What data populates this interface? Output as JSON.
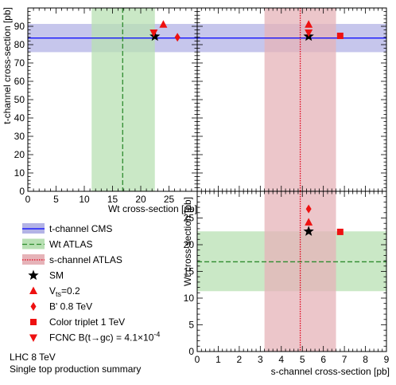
{
  "colors": {
    "cms_line": "#0000ff",
    "cms_band": "#b3b3e6",
    "wt_line": "#2e8b2e",
    "wt_band": "#b8e0b3",
    "s_line": "#e0001a",
    "s_band": "#e6b3b8",
    "marker": "#ee1111",
    "sm": "#000000"
  },
  "chart_data": [
    {
      "id": "top-left",
      "type": "scatter",
      "xlabel": "Wt cross-section [pb]",
      "ylabel": "t-channel cross-section [pb]",
      "xlim": [
        0,
        30
      ],
      "ylim": [
        0,
        100
      ],
      "xticks": [
        0,
        5,
        10,
        15,
        20,
        25
      ],
      "yticks": [
        0,
        10,
        20,
        30,
        40,
        50,
        60,
        70,
        80,
        90
      ],
      "bands": [
        {
          "name": "t-channel CMS",
          "axis": "y",
          "center": 83.6,
          "low": 75.9,
          "high": 91.3
        },
        {
          "name": "Wt ATLAS",
          "axis": "x",
          "center": 16.8,
          "low": 11.3,
          "high": 22.5
        }
      ],
      "points": [
        {
          "name": "SM",
          "x": 22.5,
          "y": 84.5
        },
        {
          "name": "Vts=0.2",
          "x": 24.0,
          "y": 91.0
        },
        {
          "name": "B' 0.8 TeV",
          "x": 26.5,
          "y": 84.0
        },
        {
          "name": "FCNC",
          "x": 22.3,
          "y": 86.5
        }
      ]
    },
    {
      "id": "top-right",
      "type": "scatter",
      "xlabel": "",
      "ylabel": "",
      "xlim": [
        0,
        9
      ],
      "ylim": [
        0,
        100
      ],
      "bands": [
        {
          "name": "t-channel CMS",
          "axis": "y",
          "center": 83.6,
          "low": 75.9,
          "high": 91.3
        },
        {
          "name": "s-channel ATLAS",
          "axis": "x",
          "center": 4.9,
          "low": 3.2,
          "high": 6.6
        }
      ],
      "points": [
        {
          "name": "SM",
          "x": 5.3,
          "y": 84.5
        },
        {
          "name": "Vts=0.2",
          "x": 5.3,
          "y": 91.0
        },
        {
          "name": "Color triplet 1 TeV",
          "x": 6.8,
          "y": 84.8
        },
        {
          "name": "FCNC",
          "x": 5.3,
          "y": 86.5
        }
      ]
    },
    {
      "id": "bottom-right",
      "type": "scatter",
      "xlabel": "s-channel cross-section [pb]",
      "ylabel": "Wt cross-section [pb]",
      "xlim": [
        0,
        9
      ],
      "ylim": [
        0,
        30
      ],
      "xticks": [
        0,
        1,
        2,
        3,
        4,
        5,
        6,
        7,
        8,
        9
      ],
      "yticks": [
        0,
        5,
        10,
        15,
        20,
        25
      ],
      "bands": [
        {
          "name": "Wt ATLAS",
          "axis": "y",
          "center": 16.8,
          "low": 11.3,
          "high": 22.5
        },
        {
          "name": "s-channel ATLAS",
          "axis": "x",
          "center": 4.9,
          "low": 3.2,
          "high": 6.6
        }
      ],
      "points": [
        {
          "name": "SM",
          "x": 5.3,
          "y": 22.5
        },
        {
          "name": "Vts=0.2",
          "x": 5.3,
          "y": 24.2
        },
        {
          "name": "B' 0.8 TeV",
          "x": 5.3,
          "y": 26.7
        },
        {
          "name": "Color triplet 1 TeV",
          "x": 6.8,
          "y": 22.4
        }
      ]
    }
  ],
  "legend": [
    {
      "symbol": "band-line",
      "style": "cms",
      "label": "t-channel CMS"
    },
    {
      "symbol": "band-line",
      "style": "wt",
      "label": "Wt ATLAS"
    },
    {
      "symbol": "band-line",
      "style": "s",
      "label": "s-channel ATLAS"
    },
    {
      "symbol": "star",
      "label": "SM"
    },
    {
      "symbol": "triangle-up",
      "label": "V",
      "sub": "ts",
      "tail": "=0.2"
    },
    {
      "symbol": "diamond",
      "label": "B' 0.8 TeV"
    },
    {
      "symbol": "square",
      "label": "Color triplet 1 TeV"
    },
    {
      "symbol": "triangle-down",
      "label": "FCNC B(t→gc) = 4.1×10",
      "sup": "-4"
    }
  ],
  "footer": {
    "line1": "LHC 8 TeV",
    "line2": "Single top production summary"
  }
}
